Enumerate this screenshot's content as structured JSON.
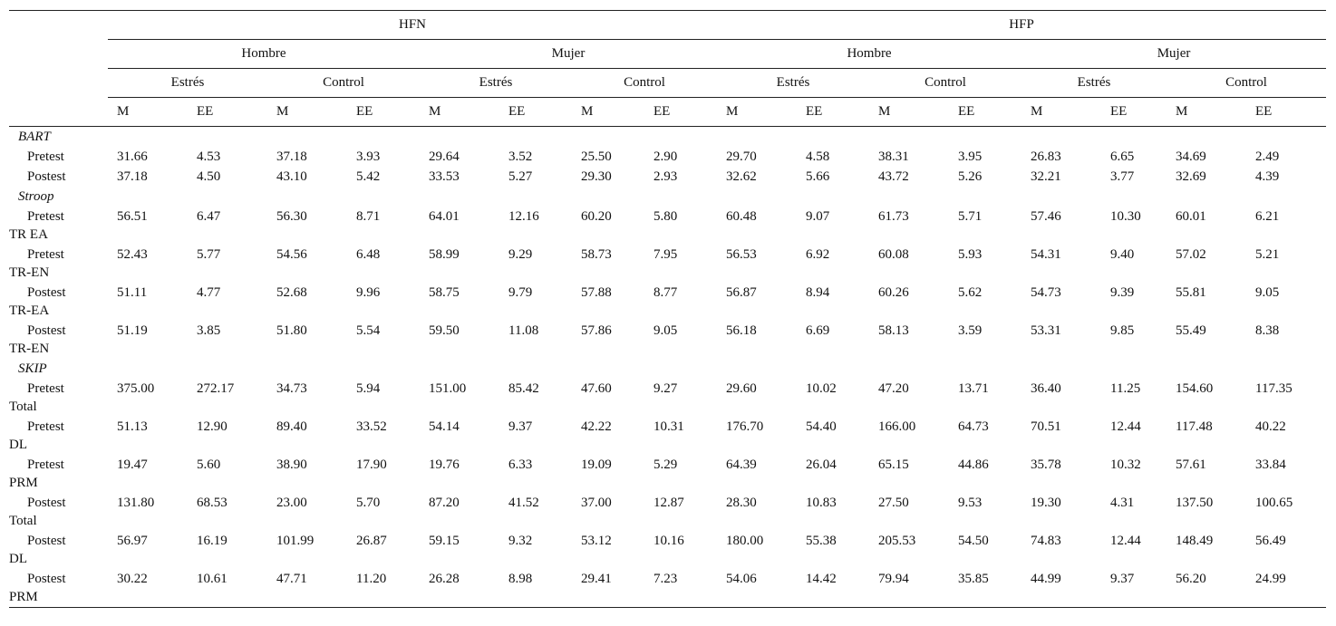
{
  "header": {
    "groups": [
      "HFN",
      "HFP"
    ],
    "sexes": [
      "Hombre",
      "Mujer",
      "Hombre",
      "Mujer"
    ],
    "conditions": [
      "Estrés",
      "Control",
      "Estrés",
      "Control",
      "Estrés",
      "Control",
      "Estrés",
      "Control"
    ],
    "stats": [
      "M",
      "EE",
      "M",
      "EE",
      "M",
      "EE",
      "M",
      "EE",
      "M",
      "EE",
      "M",
      "EE",
      "M",
      "EE",
      "M",
      "EE"
    ]
  },
  "sections": [
    {
      "title": "BART",
      "rows": [
        {
          "label": "Pretest",
          "values": [
            "31.66",
            "4.53",
            "37.18",
            "3.93",
            "29.64",
            "3.52",
            "25.50",
            "2.90",
            "29.70",
            "4.58",
            "38.31",
            "3.95",
            "26.83",
            "6.65",
            "34.69",
            "2.49"
          ]
        },
        {
          "label": "Postest",
          "values": [
            "37.18",
            "4.50",
            "43.10",
            "5.42",
            "33.53",
            "5.27",
            "29.30",
            "2.93",
            "32.62",
            "5.66",
            "43.72",
            "5.26",
            "32.21",
            "3.77",
            "32.69",
            "4.39"
          ]
        }
      ]
    },
    {
      "title": "Stroop",
      "rows": [
        {
          "label": "Pretest",
          "sublabel": "TR EA",
          "values": [
            "56.51",
            "6.47",
            "56.30",
            "8.71",
            "64.01",
            "12.16",
            "60.20",
            "5.80",
            "60.48",
            "9.07",
            "61.73",
            "5.71",
            "57.46",
            "10.30",
            "60.01",
            "6.21"
          ]
        },
        {
          "label": "Pretest",
          "sublabel": "TR-EN",
          "values": [
            "52.43",
            "5.77",
            "54.56",
            "6.48",
            "58.99",
            "9.29",
            "58.73",
            "7.95",
            "56.53",
            "6.92",
            "60.08",
            "5.93",
            "54.31",
            "9.40",
            "57.02",
            "5.21"
          ]
        },
        {
          "label": "Postest",
          "sublabel": "TR-EA",
          "values": [
            "51.11",
            "4.77",
            "52.68",
            "9.96",
            "58.75",
            "9.79",
            "57.88",
            "8.77",
            "56.87",
            "8.94",
            "60.26",
            "5.62",
            "54.73",
            "9.39",
            "55.81",
            "9.05"
          ]
        },
        {
          "label": "Postest",
          "sublabel": "TR-EN",
          "values": [
            "51.19",
            "3.85",
            "51.80",
            "5.54",
            "59.50",
            "11.08",
            "57.86",
            "9.05",
            "56.18",
            "6.69",
            "58.13",
            "3.59",
            "53.31",
            "9.85",
            "55.49",
            "8.38"
          ]
        }
      ]
    },
    {
      "title": "SKIP",
      "rows": [
        {
          "label": "Pretest",
          "sublabel": "Total",
          "values": [
            "375.00",
            "272.17",
            "34.73",
            "5.94",
            "151.00",
            "85.42",
            "47.60",
            "9.27",
            "29.60",
            "10.02",
            "47.20",
            "13.71",
            "36.40",
            "11.25",
            "154.60",
            "117.35"
          ]
        },
        {
          "label": "Pretest",
          "sublabel": "DL",
          "values": [
            "51.13",
            "12.90",
            "89.40",
            "33.52",
            "54.14",
            "9.37",
            "42.22",
            "10.31",
            "176.70",
            "54.40",
            "166.00",
            "64.73",
            "70.51",
            "12.44",
            "117.48",
            "40.22"
          ]
        },
        {
          "label": "Pretest",
          "sublabel": "PRM",
          "values": [
            "19.47",
            "5.60",
            "38.90",
            "17.90",
            "19.76",
            "6.33",
            "19.09",
            "5.29",
            "64.39",
            "26.04",
            "65.15",
            "44.86",
            "35.78",
            "10.32",
            "57.61",
            "33.84"
          ]
        },
        {
          "label": "Postest",
          "sublabel": "Total",
          "values": [
            "131.80",
            "68.53",
            "23.00",
            "5.70",
            "87.20",
            "41.52",
            "37.00",
            "12.87",
            "28.30",
            "10.83",
            "27.50",
            "9.53",
            "19.30",
            "4.31",
            "137.50",
            "100.65"
          ]
        },
        {
          "label": "Postest",
          "sublabel": "DL",
          "values": [
            "56.97",
            "16.19",
            "101.99",
            "26.87",
            "59.15",
            "9.32",
            "53.12",
            "10.16",
            "180.00",
            "55.38",
            "205.53",
            "54.50",
            "74.83",
            "12.44",
            "148.49",
            "56.49"
          ]
        },
        {
          "label": "Postest",
          "sublabel": "PRM",
          "values": [
            "30.22",
            "10.61",
            "47.71",
            "11.20",
            "26.28",
            "8.98",
            "29.41",
            "7.23",
            "54.06",
            "14.42",
            "79.94",
            "35.85",
            "44.99",
            "9.37",
            "56.20",
            "24.99"
          ]
        }
      ]
    }
  ]
}
